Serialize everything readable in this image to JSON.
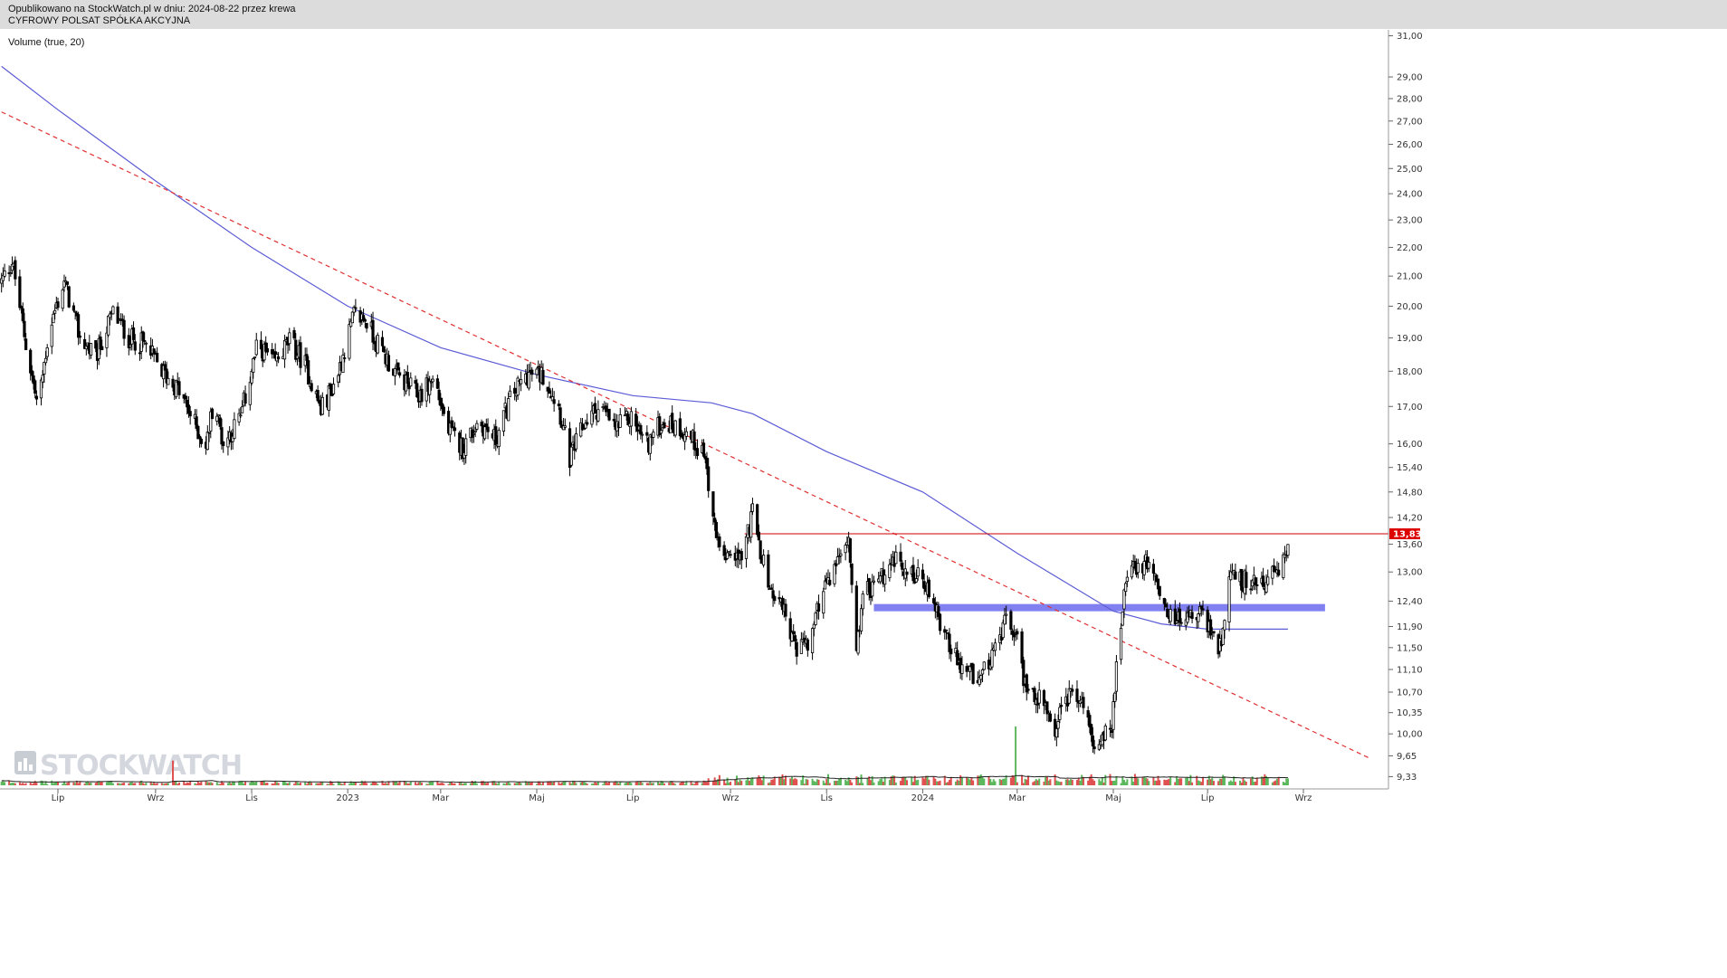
{
  "header": {
    "published": "Opublikowano na StockWatch.pl w dniu: 2024-08-22 przez krewa",
    "company": "CYFROWY POLSAT SPÓŁKA AKCYJNA"
  },
  "indicator_label": "Volume (true, 20)",
  "logo_text": "STOCKWATCH",
  "colors": {
    "candle": "#000000",
    "ma_line": "#5b5bd6",
    "trend_line": "#e03030",
    "resistance_line": "#cc0000",
    "support_band": "#8080f0",
    "vol_up": "#5cb85c",
    "vol_down": "#e05050",
    "badge": "#dd0000"
  },
  "chart_data": {
    "type": "candlestick",
    "y_scale": "log",
    "ylim": [
      9.2,
      31.3
    ],
    "y_ticks": [
      31.0,
      29.0,
      28.0,
      27.0,
      26.0,
      25.0,
      24.0,
      23.0,
      22.0,
      21.0,
      20.0,
      19.0,
      18.0,
      17.0,
      16.0,
      15.4,
      14.8,
      14.2,
      13.6,
      13.0,
      12.4,
      11.9,
      11.5,
      11.1,
      10.7,
      10.35,
      10.0,
      9.65,
      9.33
    ],
    "y_tick_labels": [
      "31,00",
      "29,00",
      "28,00",
      "27,00",
      "26,00",
      "25,00",
      "24,00",
      "23,00",
      "22,00",
      "21,00",
      "20,00",
      "19,00",
      "18,00",
      "17,00",
      "16,00",
      "15,40",
      "14,80",
      "14,20",
      "13,60",
      "13,00",
      "12,40",
      "11,90",
      "11,50",
      "11,10",
      "10,70",
      "10,35",
      "10,00",
      "9,65",
      "9,33"
    ],
    "x_labels": [
      {
        "label": "Lip",
        "date": "2022-07-01"
      },
      {
        "label": "Wrz",
        "date": "2022-09-01"
      },
      {
        "label": "Lis",
        "date": "2022-11-01"
      },
      {
        "label": "2023",
        "date": "2023-01-01"
      },
      {
        "label": "Mar",
        "date": "2023-03-01"
      },
      {
        "label": "Maj",
        "date": "2023-05-01"
      },
      {
        "label": "Lip",
        "date": "2023-07-01"
      },
      {
        "label": "Wrz",
        "date": "2023-09-01"
      },
      {
        "label": "Lis",
        "date": "2023-11-01"
      },
      {
        "label": "2024",
        "date": "2024-01-01"
      },
      {
        "label": "Mar",
        "date": "2024-03-01"
      },
      {
        "label": "Maj",
        "date": "2024-05-01"
      },
      {
        "label": "Lip",
        "date": "2024-07-01"
      },
      {
        "label": "Wrz",
        "date": "2024-09-01"
      }
    ],
    "price_path": [
      [
        "2022-05-25",
        20.8
      ],
      [
        "2022-06-01",
        21.5
      ],
      [
        "2022-06-10",
        18.8
      ],
      [
        "2022-06-18",
        16.9
      ],
      [
        "2022-06-25",
        19.2
      ],
      [
        "2022-07-05",
        20.8
      ],
      [
        "2022-07-15",
        19.0
      ],
      [
        "2022-07-25",
        18.4
      ],
      [
        "2022-08-05",
        19.8
      ],
      [
        "2022-08-15",
        19.0
      ],
      [
        "2022-08-25",
        18.8
      ],
      [
        "2022-09-05",
        18.0
      ],
      [
        "2022-09-15",
        17.5
      ],
      [
        "2022-09-25",
        16.6
      ],
      [
        "2022-10-03",
        15.9
      ],
      [
        "2022-10-08",
        17.2
      ],
      [
        "2022-10-14",
        16.0
      ],
      [
        "2022-10-25",
        16.7
      ],
      [
        "2022-11-05",
        18.8
      ],
      [
        "2022-11-15",
        18.2
      ],
      [
        "2022-11-25",
        18.9
      ],
      [
        "2022-12-05",
        18.2
      ],
      [
        "2022-12-15",
        16.9
      ],
      [
        "2022-12-25",
        17.8
      ],
      [
        "2023-01-05",
        19.7
      ],
      [
        "2023-01-12",
        19.6
      ],
      [
        "2023-01-20",
        18.8
      ],
      [
        "2023-02-01",
        17.9
      ],
      [
        "2023-02-15",
        17.3
      ],
      [
        "2023-02-25",
        17.8
      ],
      [
        "2023-03-05",
        16.4
      ],
      [
        "2023-03-15",
        15.9
      ],
      [
        "2023-03-25",
        16.6
      ],
      [
        "2023-04-05",
        16.1
      ],
      [
        "2023-04-15",
        17.3
      ],
      [
        "2023-04-25",
        17.9
      ],
      [
        "2023-05-05",
        17.9
      ],
      [
        "2023-05-15",
        17.0
      ],
      [
        "2023-05-22",
        15.6
      ],
      [
        "2023-06-01",
        16.6
      ],
      [
        "2023-06-10",
        17.0
      ],
      [
        "2023-06-20",
        16.4
      ],
      [
        "2023-06-30",
        16.7
      ],
      [
        "2023-07-10",
        16.0
      ],
      [
        "2023-07-20",
        16.6
      ],
      [
        "2023-08-01",
        16.4
      ],
      [
        "2023-08-15",
        15.8
      ],
      [
        "2023-08-22",
        14.0
      ],
      [
        "2023-09-01",
        13.2
      ],
      [
        "2023-09-10",
        13.5
      ],
      [
        "2023-09-15",
        14.3
      ],
      [
        "2023-09-25",
        12.7
      ],
      [
        "2023-10-05",
        12.2
      ],
      [
        "2023-10-13",
        11.5
      ],
      [
        "2023-10-20",
        11.5
      ],
      [
        "2023-10-30",
        12.7
      ],
      [
        "2023-11-10",
        13.3
      ],
      [
        "2023-11-15",
        13.7
      ],
      [
        "2023-11-20",
        11.6
      ],
      [
        "2023-11-25",
        12.6
      ],
      [
        "2023-12-05",
        12.8
      ],
      [
        "2023-12-15",
        13.3
      ],
      [
        "2024-01-01",
        12.8
      ],
      [
        "2024-01-15",
        11.8
      ],
      [
        "2024-01-25",
        11.1
      ],
      [
        "2024-02-05",
        11.0
      ],
      [
        "2024-02-15",
        11.3
      ],
      [
        "2024-02-24",
        12.1
      ],
      [
        "2024-03-01",
        11.6
      ],
      [
        "2024-03-05",
        10.9
      ],
      [
        "2024-03-15",
        10.6
      ],
      [
        "2024-03-25",
        10.1
      ],
      [
        "2024-04-05",
        10.8
      ],
      [
        "2024-04-15",
        10.2
      ],
      [
        "2024-04-20",
        9.8
      ],
      [
        "2024-04-30",
        10.2
      ],
      [
        "2024-05-08",
        12.5
      ],
      [
        "2024-05-15",
        13.1
      ],
      [
        "2024-05-25",
        13.2
      ],
      [
        "2024-06-05",
        12.1
      ],
      [
        "2024-06-15",
        12.0
      ],
      [
        "2024-06-25",
        12.2
      ],
      [
        "2024-07-01",
        12.0
      ],
      [
        "2024-07-07",
        11.4
      ],
      [
        "2024-07-12",
        11.9
      ],
      [
        "2024-07-15",
        12.9
      ],
      [
        "2024-07-25",
        12.8
      ],
      [
        "2024-08-05",
        12.8
      ],
      [
        "2024-08-15",
        13.0
      ],
      [
        "2024-08-22",
        13.6
      ]
    ],
    "moving_average": [
      [
        "2022-05-25",
        29.5
      ],
      [
        "2022-07-01",
        27.5
      ],
      [
        "2022-09-01",
        24.5
      ],
      [
        "2022-11-01",
        22.0
      ],
      [
        "2023-01-01",
        20.0
      ],
      [
        "2023-03-01",
        18.7
      ],
      [
        "2023-05-01",
        17.9
      ],
      [
        "2023-07-01",
        17.3
      ],
      [
        "2023-08-20",
        17.1
      ],
      [
        "2023-09-15",
        16.8
      ],
      [
        "2023-11-01",
        15.8
      ],
      [
        "2024-01-01",
        14.8
      ],
      [
        "2024-03-01",
        13.4
      ],
      [
        "2024-05-01",
        12.2
      ],
      [
        "2024-06-01",
        11.95
      ],
      [
        "2024-07-01",
        11.85
      ],
      [
        "2024-08-22",
        11.85
      ]
    ],
    "trend_line": {
      "from": [
        "2022-05-25",
        27.4
      ],
      "to": [
        "2024-10-15",
        9.6
      ]
    },
    "resistance_line": {
      "level": 13.83,
      "from_date": "2023-09-10"
    },
    "support_band": {
      "level": 12.27,
      "from_date": "2023-12-01",
      "to_date": "2024-09-15"
    },
    "last_price_label": "13,83",
    "volume_spikes": [
      {
        "date": "2022-09-12",
        "value": 0.42
      },
      {
        "date": "2023-09-10",
        "value": 0.26
      },
      {
        "date": "2024-02-29",
        "value": 1.0
      }
    ]
  }
}
